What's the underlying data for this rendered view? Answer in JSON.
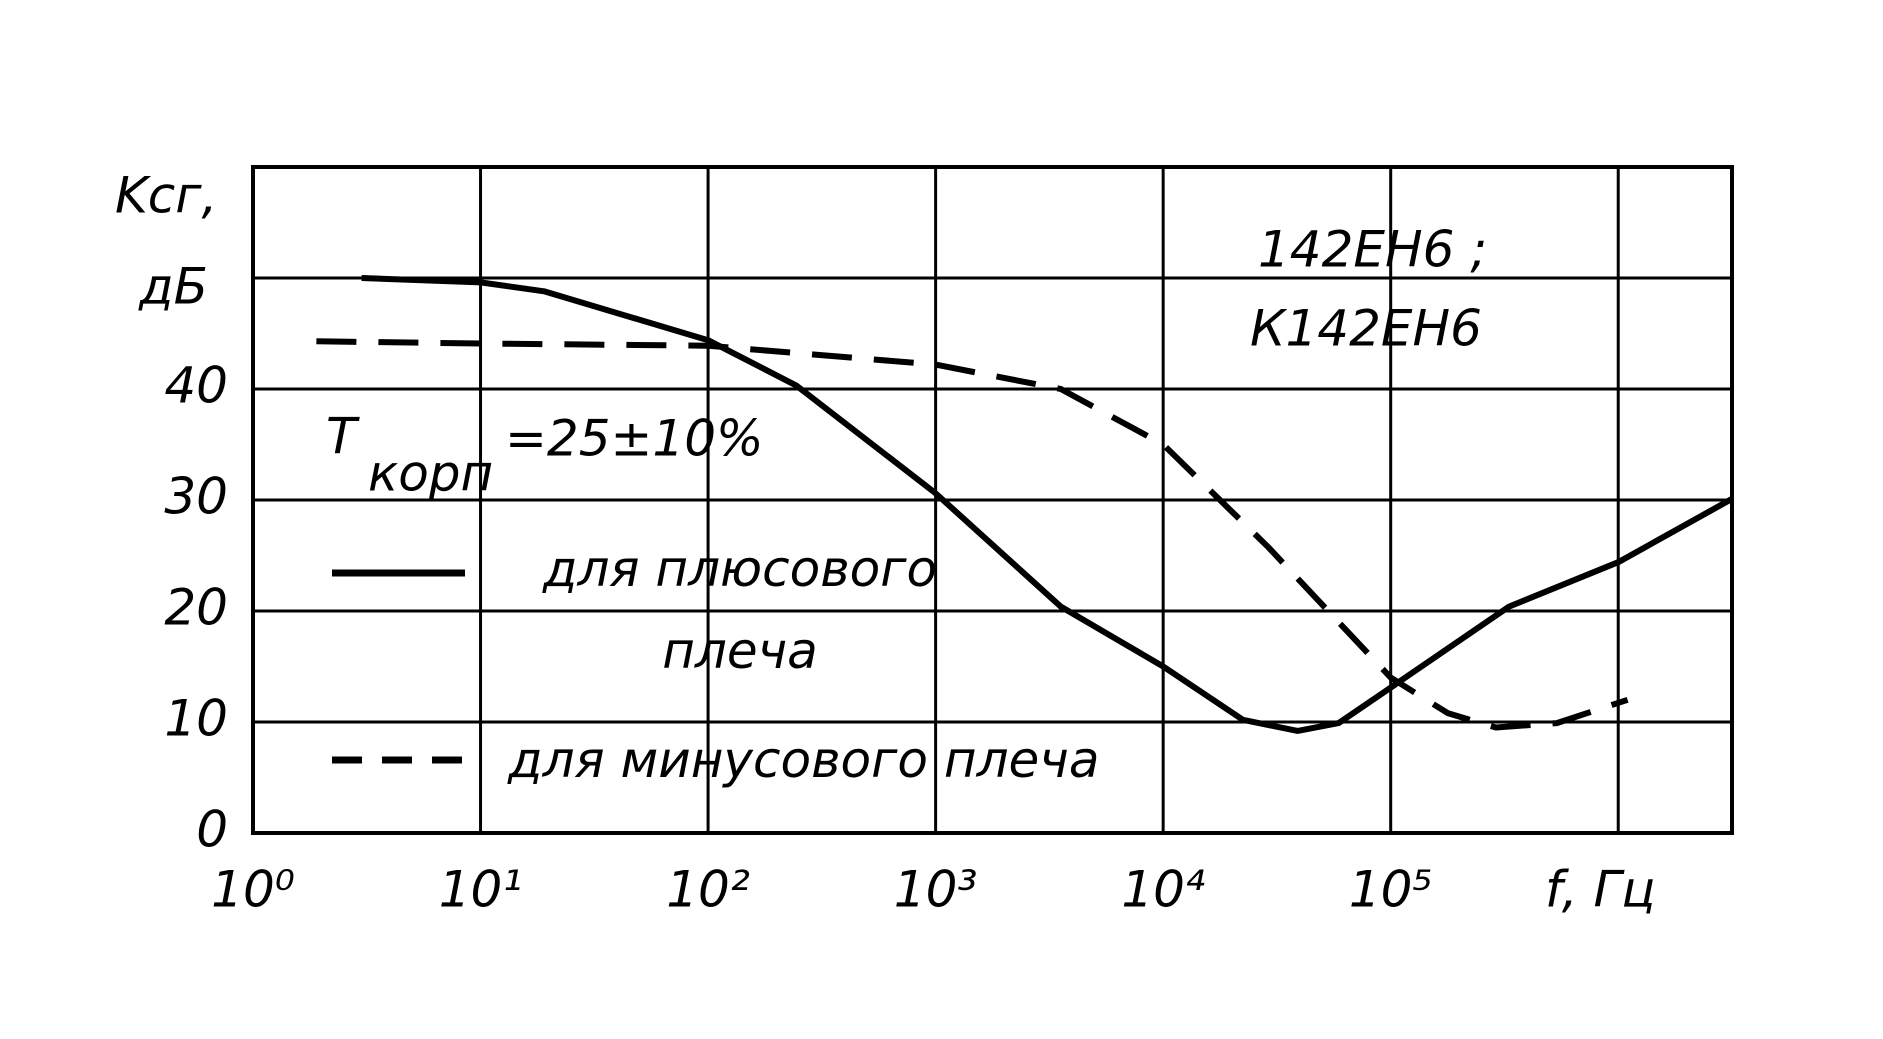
{
  "chart_data": {
    "type": "line",
    "ylabel": [
      "Kсг,",
      "дБ"
    ],
    "xlabel": "f, Гц",
    "annotations": [
      "142ЕН6 ;",
      "К142ЕН6"
    ],
    "condition": [
      "Т",
      "корп",
      "=25±10%"
    ],
    "xscale": "log",
    "xlim": [
      1,
      3162278
    ],
    "ylim": [
      0,
      60
    ],
    "xticks": [
      {
        "value": 1,
        "label": "10⁰"
      },
      {
        "value": 10,
        "label": "10¹"
      },
      {
        "value": 100,
        "label": "10²"
      },
      {
        "value": 1000,
        "label": "10³"
      },
      {
        "value": 10000,
        "label": "10⁴"
      },
      {
        "value": 100000,
        "label": "10⁵"
      },
      {
        "value": 1000000,
        "label": null
      }
    ],
    "yticks": [
      0,
      10,
      20,
      30,
      40,
      {
        "value": 50,
        "label": null
      }
    ],
    "grid": true,
    "series": [
      {
        "name": "для плюсового плеча",
        "color": "#000000",
        "dash": false,
        "x": [
          3,
          10,
          19,
          100,
          245,
          1000,
          3550,
          10000,
          22400,
          39000,
          59000,
          100000,
          331000,
          1000000,
          3160000
        ],
        "values": [
          50,
          49.6,
          48.8,
          44.4,
          40.3,
          30.6,
          20.4,
          15,
          10.2,
          9.2,
          9.9,
          13.1,
          20.4,
          24.4,
          30.1
        ]
      },
      {
        "name": "для минусового плеча",
        "color": "#000000",
        "dash": true,
        "x": [
          1.9,
          10,
          100,
          1000,
          3550,
          10000,
          28800,
          100000,
          178000,
          290000,
          537000,
          1100000
        ],
        "values": [
          44.3,
          44.1,
          43.9,
          42.2,
          40,
          35,
          25.8,
          14,
          10.8,
          9.5,
          9.9,
          12
        ]
      }
    ]
  }
}
